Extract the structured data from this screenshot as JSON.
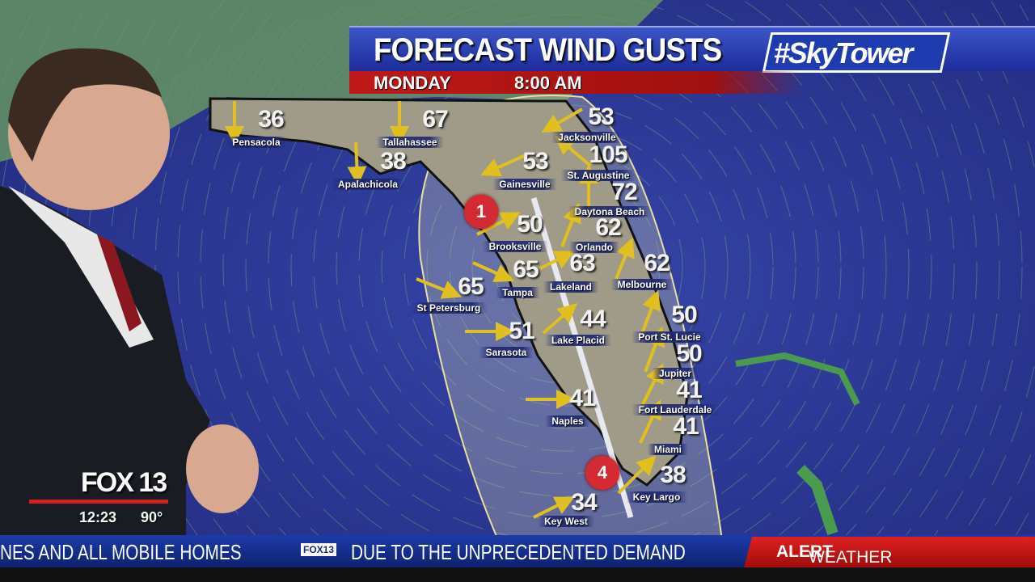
{
  "header": {
    "title": "FORECAST WIND GUSTS",
    "day": "MONDAY",
    "time": "8:00 AM",
    "brand": "#SkyTower"
  },
  "storm_markers": [
    {
      "category": "1"
    },
    {
      "category": "4"
    }
  ],
  "cities": [
    {
      "name": "Pensacola",
      "gust": "36"
    },
    {
      "name": "Tallahassee",
      "gust": "67"
    },
    {
      "name": "Apalachicola",
      "gust": "38"
    },
    {
      "name": "Jacksonville",
      "gust": "53"
    },
    {
      "name": "St. Augustine",
      "gust": "105"
    },
    {
      "name": "Gainesville",
      "gust": "53"
    },
    {
      "name": "Daytona Beach",
      "gust": "72"
    },
    {
      "name": "Brooksville",
      "gust": "50"
    },
    {
      "name": "Orlando",
      "gust": "62"
    },
    {
      "name": "Tampa",
      "gust": "65"
    },
    {
      "name": "Lakeland",
      "gust": "63"
    },
    {
      "name": "Melbourne",
      "gust": "62"
    },
    {
      "name": "St Petersburg",
      "gust": "65"
    },
    {
      "name": "Lake Placid",
      "gust": "44"
    },
    {
      "name": "Sarasota",
      "gust": "51"
    },
    {
      "name": "Port St. Lucie",
      "gust": "50"
    },
    {
      "name": "Jupiter",
      "gust": "50"
    },
    {
      "name": "Fort Lauderdale",
      "gust": "41"
    },
    {
      "name": "Naples",
      "gust": "41"
    },
    {
      "name": "Miami",
      "gust": "41"
    },
    {
      "name": "Key Largo",
      "gust": "38"
    },
    {
      "name": "Key West",
      "gust": "34"
    }
  ],
  "station": {
    "logo": "FOX 13",
    "clock": "12:23",
    "temperature": "90°"
  },
  "ticker": {
    "text1": "NES AND ALL MOBILE HOMES",
    "bug": "FOX13",
    "text2": "DUE TO THE UNPRECEDENTED DEMAND",
    "alert_a": "WEATHER ",
    "alert_b": "ALERT"
  },
  "colors": {
    "ocean": "#2a3590",
    "land": "#9a9a8a",
    "arrow": "#e0c020",
    "header_blue": "#2a40b8",
    "header_red": "#c01818",
    "storm": "#d42a34"
  }
}
